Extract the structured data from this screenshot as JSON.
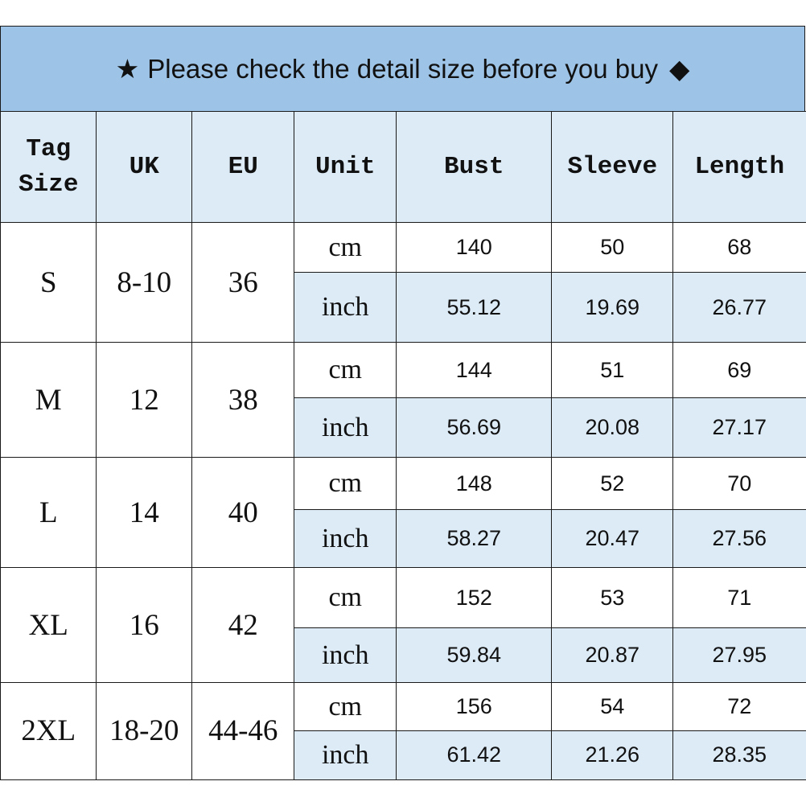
{
  "banner": {
    "star_icon": "★",
    "text": "Please check the detail size before you buy",
    "diamond_icon": "◆"
  },
  "headers": [
    "Tag Size",
    "UK",
    "EU",
    "Unit",
    "Bust",
    "Sleeve",
    "Length"
  ],
  "rows": [
    {
      "tag": "S",
      "uk": "8-10",
      "eu": "36",
      "cm": {
        "unit": "cm",
        "bust": "140",
        "sleeve": "50",
        "length": "68"
      },
      "inch": {
        "unit": "inch",
        "bust": "55.12",
        "sleeve": "19.69",
        "length": "26.77"
      }
    },
    {
      "tag": "M",
      "uk": "12",
      "eu": "38",
      "cm": {
        "unit": "cm",
        "bust": "144",
        "sleeve": "51",
        "length": "69"
      },
      "inch": {
        "unit": "inch",
        "bust": "56.69",
        "sleeve": "20.08",
        "length": "27.17"
      }
    },
    {
      "tag": "L",
      "uk": "14",
      "eu": "40",
      "cm": {
        "unit": "cm",
        "bust": "148",
        "sleeve": "52",
        "length": "70"
      },
      "inch": {
        "unit": "inch",
        "bust": "58.27",
        "sleeve": "20.47",
        "length": "27.56"
      }
    },
    {
      "tag": "XL",
      "uk": "16",
      "eu": "42",
      "cm": {
        "unit": "cm",
        "bust": "152",
        "sleeve": "53",
        "length": "71"
      },
      "inch": {
        "unit": "inch",
        "bust": "59.84",
        "sleeve": "20.87",
        "length": "27.95"
      }
    },
    {
      "tag": "2XL",
      "uk": "18-20",
      "eu": "44-46",
      "cm": {
        "unit": "cm",
        "bust": "156",
        "sleeve": "54",
        "length": "72"
      },
      "inch": {
        "unit": "inch",
        "bust": "61.42",
        "sleeve": "21.26",
        "length": "28.35"
      }
    }
  ],
  "colors": {
    "banner": "#9dc3e6",
    "header": "#ddebf7",
    "inch_row": "#ddebf7"
  }
}
